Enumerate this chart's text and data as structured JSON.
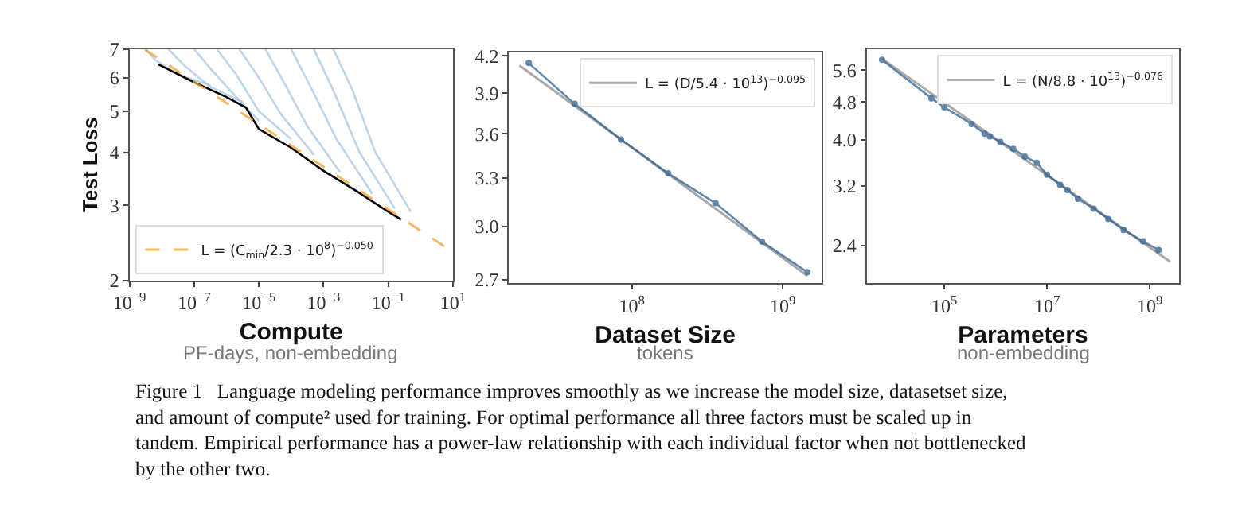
{
  "chart_data": [
    {
      "type": "line",
      "xlabel": "Compute",
      "ylabel": "Test Loss",
      "log": "xy",
      "xlim": [
        1e-09,
        10
      ],
      "ylim": [
        2,
        7
      ],
      "xticks": [
        {
          "value": 1e-09,
          "label": "10$^{−9}$"
        },
        {
          "value": 1e-07,
          "label": "10$^{−7}$"
        },
        {
          "value": 1e-05,
          "label": "10$^{−5}$"
        },
        {
          "value": 0.001,
          "label": "10$^{−3}$"
        },
        {
          "value": 0.1,
          "label": "10$^{−1}$"
        },
        {
          "value": 10,
          "label": "10$^{1}$"
        }
      ],
      "yticks": [
        2,
        3,
        4,
        5,
        6,
        7
      ],
      "legend": "bottom left",
      "annotations": [
        "PF-days, non-embedding",
        "Figure 1   Language modeling performance improves smoothly as we increase the model size, datasetset size, and amount of compute² used for training. For optimal performance all three factors must be scaled up in tandem. Empirical performance has a power-law relationship with each individual factor when not bottlenecked by the other two."
      ],
      "series": [
        {
          "color": "#a9c6e0",
          "x": [
            3.2e-09,
            6.3e-09,
            3.2e-08,
            3.2e-07
          ],
          "values": [
            7,
            6.6,
            6.1,
            5.75
          ]
        },
        {
          "color": "#a9c6e0",
          "x": [
            1.6e-08,
            5e-08,
            3.2e-07,
            3.2e-06
          ],
          "values": [
            7,
            6.4,
            5.7,
            5.25
          ]
        },
        {
          "color": "#a9c6e0",
          "x": [
            1e-07,
            3.2e-07,
            1.6e-06,
            1e-05
          ],
          "values": [
            7,
            6.3,
            5.5,
            4.75
          ]
        },
        {
          "color": "#a9c6e0",
          "x": [
            5e-07,
            2e-06,
            1e-05,
            0.0001
          ],
          "values": [
            7,
            6.1,
            5.0,
            4.3
          ]
        },
        {
          "color": "#a9c6e0",
          "x": [
            2.5e-06,
            1e-05,
            5e-05,
            0.0005
          ],
          "values": [
            7,
            6.0,
            4.9,
            3.95
          ]
        },
        {
          "color": "#a9c6e0",
          "x": [
            1.6e-05,
            6.3e-05,
            0.00032,
            0.0032
          ],
          "values": [
            7,
            5.8,
            4.6,
            3.6
          ]
        },
        {
          "color": "#a9c6e0",
          "x": [
            0.0001,
            0.0004,
            0.0025,
            0.032
          ],
          "values": [
            7,
            5.7,
            4.3,
            3.2
          ]
        },
        {
          "color": "#a9c6e0",
          "x": [
            0.0005,
            0.002,
            0.013,
            0.16
          ],
          "values": [
            7,
            5.6,
            4.0,
            2.95
          ]
        },
        {
          "color": "#a9c6e0",
          "x": [
            0.002,
            0.0079,
            0.04,
            0.5
          ],
          "values": [
            7,
            5.6,
            4.0,
            2.9
          ]
        },
        {
          "color": "#000000",
          "x": [
            7.9e-09,
            1e-07,
            1e-06,
            4e-06,
            1e-05,
            0.0001,
            0.001,
            0.01,
            0.1,
            0.25
          ],
          "values": [
            6.44,
            5.85,
            5.4,
            5.1,
            4.54,
            4.1,
            3.62,
            3.25,
            2.9,
            2.78
          ]
        },
        {
          "name": "L = (C$_{min}$/2.3 · 10$^{8}$)$^{−0.050}$",
          "color": "#f0a030",
          "line_style": "dashed",
          "x": [
            3e-09,
            1e-07,
            1e-05,
            0.001,
            0.1,
            10
          ],
          "values": [
            6.98,
            5.86,
            4.66,
            3.7,
            2.94,
            2.33
          ]
        }
      ]
    },
    {
      "type": "line",
      "xlabel": "Dataset Size",
      "log": "xy",
      "xlim": [
        15300000.0,
        1810000000.0
      ],
      "ylim": [
        2.68,
        4.23
      ],
      "xticks": [
        {
          "value": 100000000.0,
          "label": "10$^{8}$"
        },
        {
          "value": 1000000000.0,
          "label": "10$^{9}$"
        }
      ],
      "yticks": [
        {
          "value": 2.7,
          "label": "2.7"
        },
        {
          "value": 3.0,
          "label": "3.0"
        },
        3.3,
        3.6,
        3.9,
        4.2
      ],
      "legend": "top right",
      "annotations": [
        "tokens"
      ],
      "series": [
        {
          "name": "L = (D/5.4 · 10$^{13}$)$^{−0.095}$",
          "color": "#8c8c8c",
          "x": [
            18000000.0,
            1460000000.0
          ],
          "values": [
            4.12,
            2.72
          ]
        },
        {
          "color": "#2f5f8f",
          "marker": "circle",
          "x": [
            20700000.0,
            41700000.0,
            84700000.0,
            174000000.0,
            359000000.0,
            730000000.0,
            1460000000.0
          ],
          "values": [
            4.14,
            3.82,
            3.56,
            3.33,
            3.14,
            2.91,
            2.74
          ]
        }
      ]
    },
    {
      "type": "line",
      "xlabel": "Parameters",
      "log": "xy",
      "xlim": [
        3060,
        3770000000.0
      ],
      "ylim": [
        2.0,
        6.2
      ],
      "xticks": [
        {
          "value": 100000.0,
          "label": "10$^{5}$"
        },
        {
          "value": 10000000.0,
          "label": "10$^{7}$"
        },
        {
          "value": 1000000000.0,
          "label": "10$^{9}$"
        }
      ],
      "yticks": [
        {
          "value": 2.4,
          "label": "2.4"
        },
        {
          "value": 3.2,
          "label": "3.2"
        },
        {
          "value": 4.0,
          "label": "4.0"
        },
        {
          "value": 4.8,
          "label": "4.8"
        },
        {
          "value": 5.6,
          "label": "5.6"
        }
      ],
      "legend": "top right",
      "annotations": [
        "non-embedding"
      ],
      "series": [
        {
          "name": "L = (N/8.8 · 10$^{13}$)$^{−0.076}$",
          "color": "#8c8c8c",
          "x": [
            6100.0,
            2500000000.0
          ],
          "values": [
            5.92,
            2.22
          ]
        },
        {
          "color": "#2f5f8f",
          "marker": "circle",
          "x": [
            6100.0,
            56000.0,
            100000.0,
            340000.0,
            610000.0,
            770000.0,
            1230000.0,
            2200000.0,
            3700000.0,
            6300000.0,
            10000000.0,
            18000000.0,
            25000000.0,
            40000000.0,
            81000000.0,
            156000000.0,
            310000000.0,
            740000000.0,
            1490000000.0
          ],
          "values": [
            5.89,
            4.89,
            4.68,
            4.32,
            4.12,
            4.07,
            3.96,
            3.83,
            3.69,
            3.58,
            3.38,
            3.22,
            3.14,
            3.01,
            2.87,
            2.73,
            2.59,
            2.45,
            2.35
          ]
        }
      ]
    }
  ]
}
